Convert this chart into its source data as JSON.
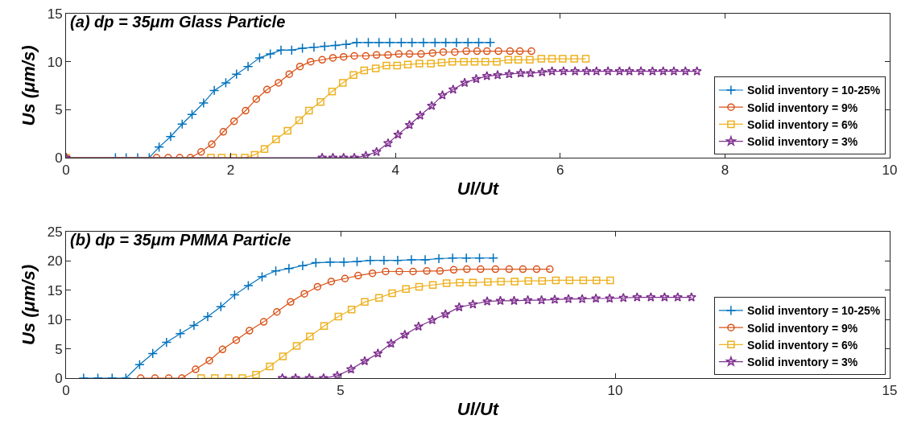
{
  "chart_data": [
    {
      "type": "line",
      "title": "(a) dp = 35μm Glass Particle",
      "xlabel": "Ul/Ut",
      "ylabel": "Us (μm/s)",
      "xlim": [
        0,
        10
      ],
      "xticks": [
        0,
        2,
        4,
        6,
        8,
        10
      ],
      "ylim": [
        0,
        15
      ],
      "yticks": [
        0,
        5,
        10,
        15
      ],
      "grid": false,
      "legend": "bottom right",
      "series": [
        {
          "name": "Solid inventory = 10-25%",
          "color": "#0072bd",
          "marker": "cross",
          "x": [
            0,
            0.6,
            0.73,
            0.87,
            1.01,
            1.13,
            1.27,
            1.41,
            1.53,
            1.67,
            1.8,
            1.94,
            2.07,
            2.21,
            2.35,
            2.48,
            2.61,
            2.74,
            2.87,
            3.01,
            3.14,
            3.27,
            3.4,
            3.53,
            3.67,
            3.8,
            3.93,
            4.07,
            4.2,
            4.34,
            4.48,
            4.61,
            4.74,
            4.88,
            5.01,
            5.15
          ],
          "values": [
            0,
            0,
            0,
            0,
            0,
            1.1,
            2.2,
            3.5,
            4.5,
            5.7,
            7.0,
            7.8,
            8.7,
            9.5,
            10.4,
            10.8,
            11.2,
            11.2,
            11.4,
            11.5,
            11.6,
            11.7,
            11.8,
            12.0,
            12.0,
            12.0,
            12.0,
            12.0,
            12.0,
            12.0,
            12.0,
            12.0,
            12.0,
            12.0,
            12.0,
            12.0
          ]
        },
        {
          "name": "Solid inventory = 9%",
          "color": "#d95319",
          "marker": "circle",
          "x": [
            0,
            1.1,
            1.24,
            1.38,
            1.51,
            1.64,
            1.77,
            1.91,
            2.04,
            2.18,
            2.31,
            2.44,
            2.58,
            2.71,
            2.84,
            2.97,
            3.11,
            3.24,
            3.37,
            3.5,
            3.64,
            3.77,
            3.91,
            4.04,
            4.17,
            4.31,
            4.45,
            4.58,
            4.72,
            4.86,
            4.99,
            5.11,
            5.25,
            5.39,
            5.51,
            5.65
          ],
          "values": [
            0,
            0,
            0,
            0,
            0,
            0.6,
            1.4,
            2.7,
            3.8,
            4.9,
            6.1,
            7.1,
            7.8,
            8.7,
            9.5,
            10.0,
            10.2,
            10.4,
            10.5,
            10.6,
            10.6,
            10.7,
            10.7,
            10.8,
            10.8,
            10.8,
            10.9,
            11.0,
            11.0,
            11.1,
            11.1,
            11.1,
            11.1,
            11.1,
            11.1,
            11.1
          ]
        },
        {
          "name": "Solid inventory = 6%",
          "color": "#edb120",
          "marker": "square",
          "x": [
            0,
            1.76,
            1.89,
            2.03,
            2.17,
            2.29,
            2.41,
            2.55,
            2.69,
            2.83,
            2.95,
            3.09,
            3.23,
            3.36,
            3.49,
            3.62,
            3.76,
            3.89,
            4.02,
            4.15,
            4.29,
            4.43,
            4.56,
            4.69,
            4.83,
            4.96,
            5.09,
            5.23,
            5.37,
            5.49,
            5.63,
            5.77,
            5.9,
            6.03,
            6.17,
            6.31
          ],
          "values": [
            0,
            0,
            0,
            0,
            0,
            0.3,
            0.9,
            1.9,
            2.8,
            3.9,
            4.9,
            5.8,
            6.9,
            7.8,
            8.6,
            9.1,
            9.3,
            9.6,
            9.6,
            9.7,
            9.8,
            9.8,
            9.9,
            10.0,
            10.0,
            10.0,
            10.0,
            10.0,
            10.2,
            10.2,
            10.2,
            10.3,
            10.3,
            10.3,
            10.3,
            10.3
          ]
        },
        {
          "name": "Solid inventory = 3%",
          "color": "#7e2f8e",
          "marker": "star",
          "x": [
            0,
            3.11,
            3.24,
            3.37,
            3.5,
            3.64,
            3.77,
            3.91,
            4.03,
            4.17,
            4.3,
            4.44,
            4.57,
            4.7,
            4.84,
            4.98,
            5.11,
            5.24,
            5.38,
            5.52,
            5.64,
            5.78,
            5.9,
            6.04,
            6.18,
            6.32,
            6.44,
            6.58,
            6.72,
            6.84,
            6.98,
            7.12,
            7.25,
            7.38,
            7.52,
            7.66
          ],
          "values": [
            0,
            0,
            0,
            0,
            0,
            0.2,
            0.6,
            1.5,
            2.4,
            3.4,
            4.4,
            5.4,
            6.5,
            7.1,
            7.8,
            8.2,
            8.5,
            8.6,
            8.7,
            8.8,
            8.8,
            8.9,
            9.0,
            9.0,
            9.0,
            9.0,
            9.0,
            9.0,
            9.0,
            9.0,
            9.0,
            9.0,
            9.0,
            9.0,
            9.0,
            9.0
          ]
        }
      ]
    },
    {
      "type": "line",
      "title": "(b) dp = 35μm PMMA Particle",
      "xlabel": "Ul/Ut",
      "ylabel": "Us (μm/s)",
      "xlim": [
        0,
        15
      ],
      "xticks": [
        0,
        5,
        10,
        15
      ],
      "ylim": [
        0,
        25
      ],
      "yticks": [
        0,
        5,
        10,
        15,
        20,
        25
      ],
      "grid": false,
      "legend": "bottom right",
      "series": [
        {
          "name": "Solid inventory = 10-25%",
          "color": "#0072bd",
          "marker": "cross",
          "x": [
            0.32,
            0.58,
            0.84,
            1.09,
            1.34,
            1.58,
            1.83,
            2.08,
            2.33,
            2.58,
            2.82,
            3.07,
            3.32,
            3.57,
            3.82,
            4.06,
            4.31,
            4.55,
            4.81,
            5.06,
            5.3,
            5.54,
            5.79,
            6.04,
            6.29,
            6.54,
            6.79,
            7.04,
            7.29,
            7.53,
            7.78
          ],
          "values": [
            0,
            0,
            0,
            0,
            2.3,
            4.2,
            6.1,
            7.6,
            9.0,
            10.5,
            12.2,
            14.2,
            15.8,
            17.3,
            18.3,
            18.7,
            19.2,
            19.7,
            19.8,
            19.8,
            19.9,
            20.1,
            20.1,
            20.1,
            20.2,
            20.2,
            20.4,
            20.5,
            20.5,
            20.5,
            20.5
          ]
        },
        {
          "name": "Solid inventory = 9%",
          "color": "#d95319",
          "marker": "circle",
          "x": [
            1.36,
            1.62,
            1.87,
            2.11,
            2.36,
            2.61,
            2.85,
            3.1,
            3.34,
            3.6,
            3.84,
            4.09,
            4.34,
            4.58,
            4.83,
            5.08,
            5.32,
            5.58,
            5.82,
            6.07,
            6.32,
            6.57,
            6.81,
            7.06,
            7.3,
            7.55,
            7.82,
            8.07,
            8.32,
            8.57,
            8.81
          ],
          "values": [
            0,
            0,
            0,
            0,
            1.5,
            3.0,
            4.9,
            6.5,
            8.1,
            9.6,
            11.3,
            13.0,
            14.4,
            15.6,
            16.5,
            17.0,
            17.5,
            17.9,
            18.2,
            18.2,
            18.2,
            18.3,
            18.3,
            18.5,
            18.6,
            18.6,
            18.6,
            18.6,
            18.6,
            18.6,
            18.6
          ]
        },
        {
          "name": "Solid inventory = 6%",
          "color": "#edb120",
          "marker": "square",
          "x": [
            2.46,
            2.71,
            2.96,
            3.21,
            3.46,
            3.71,
            3.95,
            4.2,
            4.44,
            4.7,
            4.96,
            5.2,
            5.44,
            5.7,
            5.94,
            6.19,
            6.43,
            6.68,
            6.93,
            7.17,
            7.41,
            7.68,
            7.92,
            8.17,
            8.42,
            8.67,
            8.92,
            9.17,
            9.42,
            9.66,
            9.91
          ],
          "values": [
            0,
            0,
            0,
            0,
            0.6,
            2.0,
            3.7,
            5.5,
            7.1,
            8.9,
            10.5,
            11.7,
            13.0,
            13.7,
            14.5,
            15.2,
            15.6,
            15.9,
            16.2,
            16.3,
            16.3,
            16.4,
            16.5,
            16.5,
            16.6,
            16.6,
            16.7,
            16.7,
            16.7,
            16.7,
            16.7
          ]
        },
        {
          "name": "Solid inventory = 3%",
          "color": "#7e2f8e",
          "marker": "star",
          "x": [
            3.94,
            4.18,
            4.43,
            4.69,
            4.94,
            5.19,
            5.44,
            5.68,
            5.92,
            6.17,
            6.42,
            6.67,
            6.91,
            7.16,
            7.41,
            7.67,
            7.91,
            8.16,
            8.41,
            8.66,
            8.9,
            9.15,
            9.4,
            9.65,
            9.9,
            10.15,
            10.4,
            10.65,
            10.9,
            11.14,
            11.39
          ],
          "values": [
            0,
            0,
            0,
            0,
            0.4,
            1.5,
            2.9,
            4.2,
            5.9,
            7.4,
            8.8,
            9.9,
            10.9,
            12.1,
            12.6,
            13.1,
            13.2,
            13.2,
            13.3,
            13.3,
            13.4,
            13.5,
            13.5,
            13.6,
            13.6,
            13.7,
            13.8,
            13.8,
            13.8,
            13.8,
            13.8
          ]
        }
      ]
    }
  ]
}
